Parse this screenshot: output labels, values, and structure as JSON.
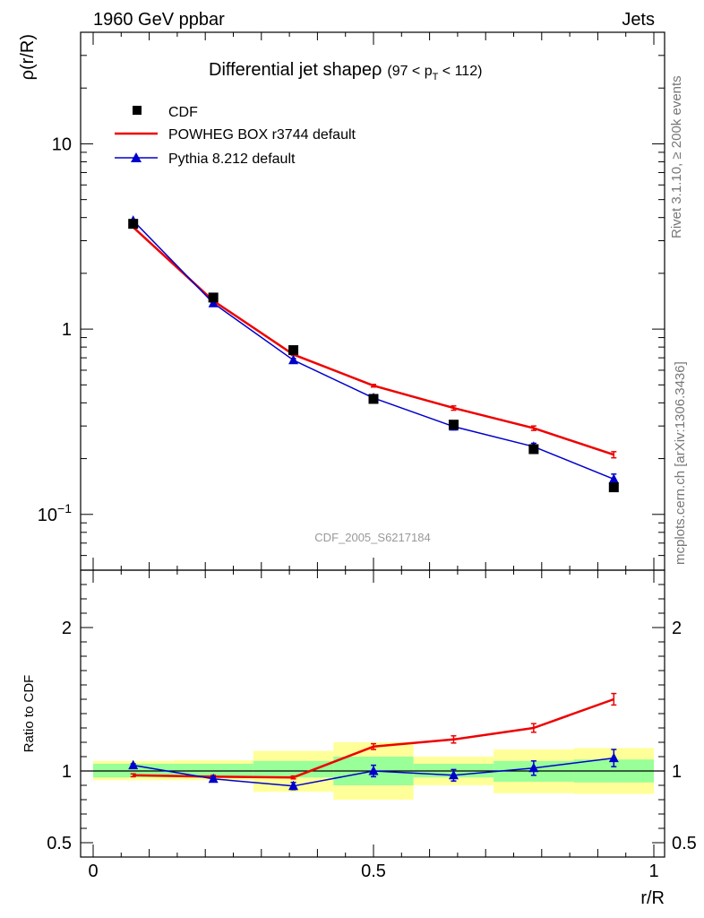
{
  "header": {
    "left_label": "1960 GeV ppbar",
    "right_label": "Jets"
  },
  "side_labels": {
    "rivet": "Rivet 3.1.10, ≥ 200k events",
    "mcplots": "mcplots.cern.ch [arXiv:1306.3436]"
  },
  "chart_data": [
    {
      "type": "line",
      "title": "Differential jet shape",
      "title_symbol": "ρ",
      "title_cut_prefix": "(97 < p",
      "title_cut_sub": "T",
      "title_cut_suffix": " < 112)",
      "ylabel": "ρ(r/R)",
      "yscale": "log",
      "ylim": [
        0.05,
        40
      ],
      "yticks": [
        {
          "value": 10,
          "label": "10"
        },
        {
          "value": 1,
          "label": "1"
        },
        {
          "value": 0.1,
          "label": "10",
          "exponent": "−1"
        }
      ],
      "xlim": [
        0,
        1
      ],
      "watermark": "CDF_2005_S6217184",
      "legend_position": "top-left",
      "series": [
        {
          "name": "CDF",
          "style": "markers",
          "marker": "square",
          "color": "#000000",
          "x": [
            0.0714,
            0.2143,
            0.3571,
            0.5,
            0.6429,
            0.7857,
            0.9286
          ],
          "y": [
            3.7,
            1.48,
            0.77,
            0.42,
            0.305,
            0.225,
            0.14
          ]
        },
        {
          "name": "POWHEG BOX r3744 default",
          "style": "line",
          "color": "#ee0000",
          "x": [
            0.0714,
            0.2143,
            0.3571,
            0.5,
            0.6429,
            0.7857,
            0.9286
          ],
          "y": [
            3.55,
            1.42,
            0.73,
            0.495,
            0.375,
            0.292,
            0.21
          ],
          "yerr": [
            0.03,
            0.02,
            0.01,
            0.008,
            0.01,
            0.008,
            0.008
          ]
        },
        {
          "name": "Pythia 8.212 default",
          "style": "line+markers",
          "marker": "triangle",
          "color": "#0000cc",
          "x": [
            0.0714,
            0.2143,
            0.3571,
            0.5,
            0.6429,
            0.7857,
            0.9286
          ],
          "y": [
            3.85,
            1.38,
            0.68,
            0.425,
            0.298,
            0.232,
            0.155
          ],
          "yerr": [
            0.04,
            0.02,
            0.015,
            0.012,
            0.012,
            0.01,
            0.01
          ]
        }
      ]
    },
    {
      "type": "line",
      "ylabel": "Ratio to CDF",
      "ylim": [
        0.4,
        2.4
      ],
      "yticks": [
        {
          "value": 0.5,
          "label": "0.5"
        },
        {
          "value": 1,
          "label": "1"
        },
        {
          "value": 2,
          "label": "2"
        }
      ],
      "xlabel": "r/R",
      "xlim": [
        0,
        1
      ],
      "xticks": [
        {
          "value": 0,
          "label": "0"
        },
        {
          "value": 0.5,
          "label": "0.5"
        },
        {
          "value": 1,
          "label": "1"
        }
      ],
      "reference_line": 1,
      "bands": [
        {
          "x0": 0.0,
          "x1": 0.1429,
          "green": [
            0.955,
            1.05
          ],
          "yellow": [
            0.935,
            1.07
          ]
        },
        {
          "x0": 0.1429,
          "x1": 0.2857,
          "green": [
            0.955,
            1.05
          ],
          "yellow": [
            0.935,
            1.075
          ]
        },
        {
          "x0": 0.2857,
          "x1": 0.4286,
          "green": [
            0.955,
            1.07
          ],
          "yellow": [
            0.855,
            1.14
          ]
        },
        {
          "x0": 0.4286,
          "x1": 0.5714,
          "green": [
            0.9,
            1.1
          ],
          "yellow": [
            0.8,
            1.2
          ]
        },
        {
          "x0": 0.5714,
          "x1": 0.7143,
          "green": [
            0.955,
            1.05
          ],
          "yellow": [
            0.9,
            1.1
          ]
        },
        {
          "x0": 0.7143,
          "x1": 0.8571,
          "green": [
            0.925,
            1.07
          ],
          "yellow": [
            0.845,
            1.15
          ]
        },
        {
          "x0": 0.8571,
          "x1": 1.0,
          "green": [
            0.92,
            1.08
          ],
          "yellow": [
            0.84,
            1.16
          ]
        }
      ],
      "series": [
        {
          "name": "POWHEG BOX r3744 default",
          "color": "#ee0000",
          "x": [
            0.0714,
            0.2143,
            0.3571,
            0.5,
            0.6429,
            0.7857,
            0.9286
          ],
          "y": [
            0.97,
            0.96,
            0.955,
            1.17,
            1.22,
            1.3,
            1.5
          ],
          "yerr": [
            0.01,
            0.01,
            0.01,
            0.02,
            0.025,
            0.03,
            0.04
          ]
        },
        {
          "name": "Pythia 8.212 default",
          "color": "#0000cc",
          "x": [
            0.0714,
            0.2143,
            0.3571,
            0.5,
            0.6429,
            0.7857,
            0.9286
          ],
          "y": [
            1.04,
            0.945,
            0.895,
            1.0,
            0.97,
            1.02,
            1.09
          ],
          "yerr": [
            0.01,
            0.015,
            0.025,
            0.04,
            0.04,
            0.05,
            0.06
          ]
        }
      ]
    }
  ]
}
